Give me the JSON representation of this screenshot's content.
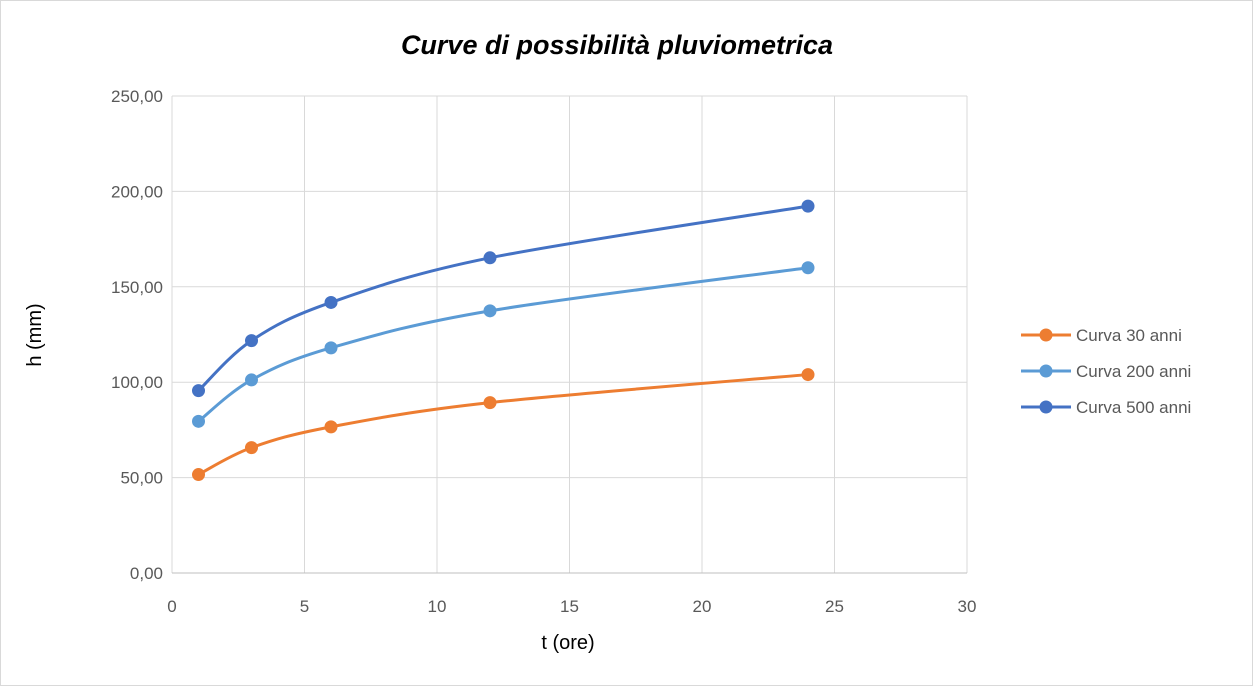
{
  "chart_data": {
    "type": "line",
    "title": "Curve di possibilità pluviometrica",
    "xlabel": "t (ore)",
    "ylabel": "h (mm)",
    "xlim": [
      0,
      30
    ],
    "ylim": [
      0,
      250
    ],
    "xticks": [
      0,
      5,
      10,
      15,
      20,
      25,
      30
    ],
    "yticks": [
      0,
      50,
      100,
      150,
      200,
      250
    ],
    "xtick_labels": [
      "0",
      "5",
      "10",
      "15",
      "20",
      "25",
      "30"
    ],
    "ytick_labels": [
      "0,00",
      "50,00",
      "100,00",
      "150,00",
      "200,00",
      "250,00"
    ],
    "grid": true,
    "smooth": true,
    "legend_position": "right",
    "x": [
      1,
      3,
      6,
      12,
      24
    ],
    "series": [
      {
        "name": "Curva 30 anni",
        "color": "#ED7D31",
        "values": [
          51.6,
          65.7,
          76.6,
          89.3,
          104.0
        ]
      },
      {
        "name": "Curva 200 anni",
        "color": "#5B9BD5",
        "values": [
          79.5,
          101.2,
          118.0,
          137.4,
          160.0
        ]
      },
      {
        "name": "Curva 500 anni",
        "color": "#4472C4",
        "values": [
          95.6,
          121.8,
          141.8,
          165.2,
          192.3
        ]
      }
    ]
  }
}
